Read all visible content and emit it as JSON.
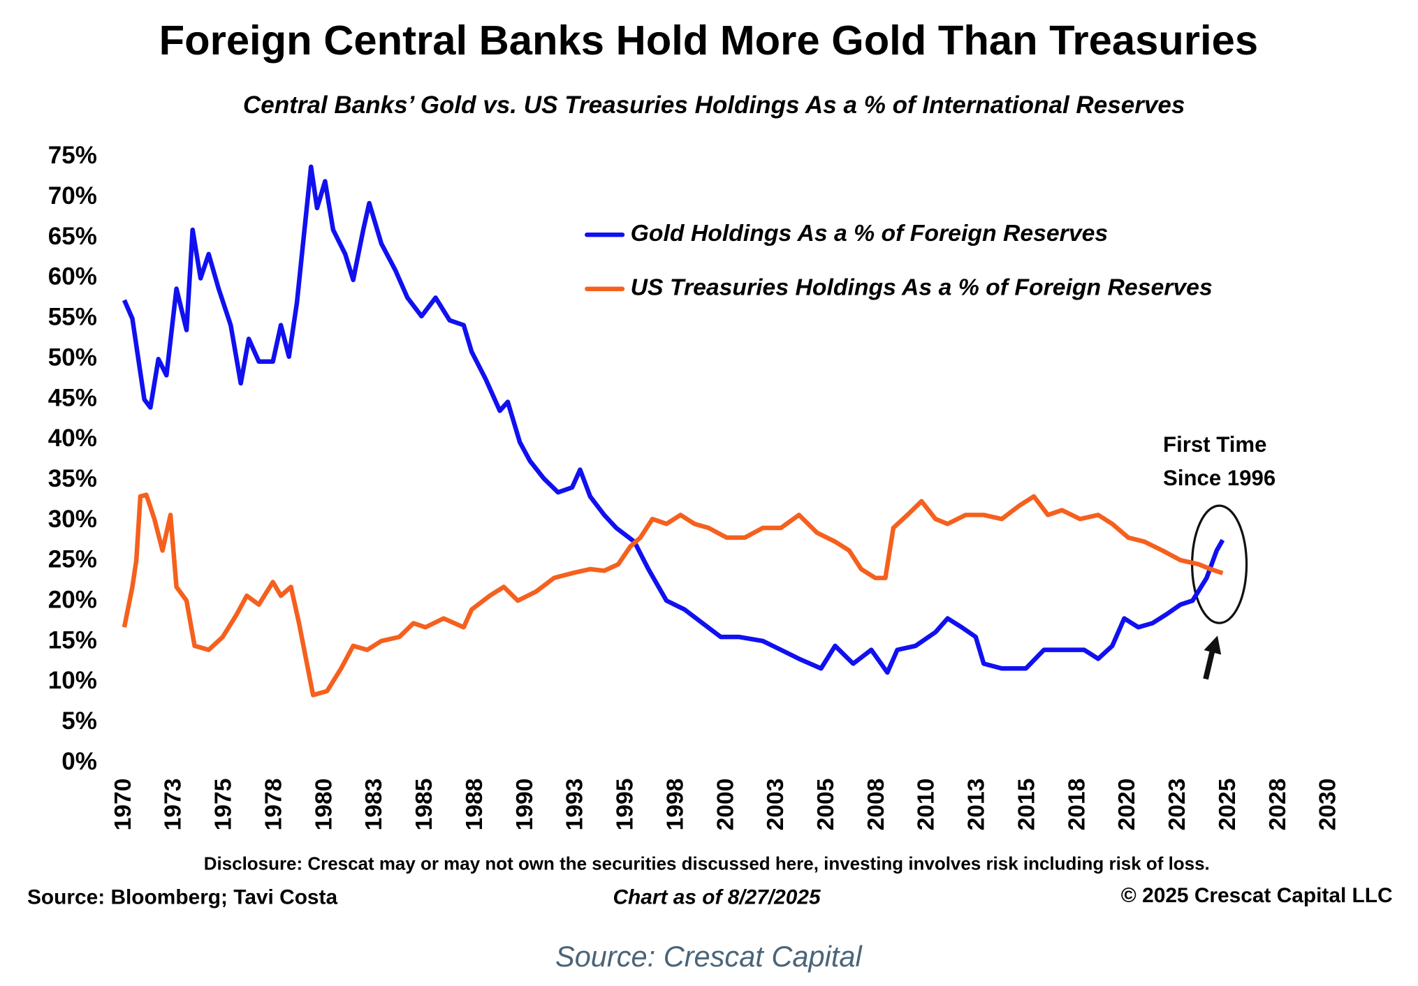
{
  "chart_data": {
    "type": "line",
    "title": "Foreign Central Banks Hold More Gold Than Treasuries",
    "subtitle": "Central Banks’ Gold vs. US Treasuries Holdings As a % of International Reserves",
    "annotation": [
      "First Time",
      "Since 1996"
    ],
    "disclosure": "Disclosure: Crescat may or may not own the securities discussed here, investing involves risk including risk of loss.",
    "source": "Source: Bloomberg; Tavi Costa",
    "chart_date": "Chart as of 8/27/2025",
    "copyright": "© 2025 Crescat Capital LLC",
    "caption": "Source: Crescat Capital",
    "xlim": [
      1970,
      2030
    ],
    "xticks": [
      1970,
      {
        "value": 1972.5,
        "label": "1973"
      },
      1975,
      {
        "value": 1977.5,
        "label": "1978"
      },
      1980,
      {
        "value": 1982.5,
        "label": "1983"
      },
      1985,
      {
        "value": 1987.5,
        "label": "1988"
      },
      1990,
      {
        "value": 1992.5,
        "label": "1993"
      },
      1995,
      {
        "value": 1997.5,
        "label": "1998"
      },
      2000,
      {
        "value": 2002.5,
        "label": "2003"
      },
      2005,
      {
        "value": 2007.5,
        "label": "2008"
      },
      2010,
      {
        "value": 2012.5,
        "label": "2013"
      },
      2015,
      {
        "value": 2017.5,
        "label": "2018"
      },
      2020,
      {
        "value": 2022.5,
        "label": "2023"
      },
      2025,
      {
        "value": 2027.5,
        "label": "2028"
      },
      2030
    ],
    "ylim": [
      0,
      75
    ],
    "yticks": [
      {
        "value": 0,
        "label": "0%"
      },
      {
        "value": 5,
        "label": "5%"
      },
      {
        "value": 10,
        "label": "10%"
      },
      {
        "value": 15,
        "label": "15%"
      },
      {
        "value": 20,
        "label": "20%"
      },
      {
        "value": 25,
        "label": "25%"
      },
      {
        "value": 30,
        "label": "30%"
      },
      {
        "value": 35,
        "label": "35%"
      },
      {
        "value": 40,
        "label": "40%"
      },
      {
        "value": 45,
        "label": "45%"
      },
      {
        "value": 50,
        "label": "50%"
      },
      {
        "value": 55,
        "label": "55%"
      },
      {
        "value": 60,
        "label": "60%"
      },
      {
        "value": 65,
        "label": "65%"
      },
      {
        "value": 70,
        "label": "70%"
      },
      {
        "value": 75,
        "label": "75%"
      }
    ],
    "series": [
      {
        "name": "Gold Holdings As a % of Foreign Reserves",
        "color": "#1010f0",
        "x": [
          1970.0,
          1970.4,
          1970.7,
          1971.0,
          1971.3,
          1971.7,
          1972.1,
          1972.6,
          1973.1,
          1973.4,
          1973.8,
          1974.2,
          1974.7,
          1975.3,
          1975.8,
          1976.2,
          1976.7,
          1977.4,
          1977.8,
          1978.2,
          1978.6,
          1979.3,
          1979.6,
          1980.0,
          1980.4,
          1981.0,
          1981.4,
          1981.9,
          1982.2,
          1982.8,
          1983.5,
          1984.1,
          1984.8,
          1985.5,
          1986.2,
          1986.9,
          1987.3,
          1988.0,
          1988.7,
          1989.1,
          1989.7,
          1990.2,
          1990.9,
          1991.6,
          1992.3,
          1992.7,
          1993.2,
          1993.9,
          1994.5,
          1995.4,
          1996.1,
          1997.0,
          1997.9,
          1998.8,
          1999.7,
          2000.6,
          2001.8,
          2002.7,
          2003.6,
          2004.7,
          2005.4,
          2006.3,
          2007.2,
          2008.0,
          2008.5,
          2009.4,
          2010.4,
          2011.0,
          2011.7,
          2012.4,
          2012.8,
          2013.7,
          2014.9,
          2015.8,
          2016.7,
          2017.8,
          2018.5,
          2019.2,
          2019.8,
          2020.5,
          2021.2,
          2021.9,
          2022.6,
          2023.2,
          2023.9,
          2024.4,
          2024.7
        ],
        "values": [
          57.3,
          55,
          50,
          45,
          44,
          50,
          48,
          58.7,
          53.6,
          66,
          60,
          63,
          58.7,
          54.2,
          47,
          52.5,
          49.7,
          49.7,
          54.2,
          50.3,
          57,
          73.8,
          68.7,
          72,
          66,
          63,
          59.8,
          66,
          69.3,
          64.3,
          61,
          57.6,
          55.3,
          57.6,
          54.8,
          54.2,
          50.9,
          47.5,
          43.6,
          44.7,
          39.7,
          37.4,
          35.2,
          33.5,
          34.1,
          36.3,
          33,
          30.7,
          29.1,
          27.4,
          24,
          20.1,
          19,
          17.3,
          15.6,
          15.6,
          15.1,
          14,
          12.9,
          11.7,
          14.5,
          12.3,
          14,
          11.2,
          14,
          14.5,
          16.2,
          17.9,
          16.8,
          15.6,
          12.3,
          11.7,
          11.7,
          14,
          14,
          14,
          12.9,
          14.5,
          17.9,
          16.8,
          17.3,
          18.4,
          19.6,
          20.1,
          22.9,
          26.3,
          27.6
        ]
      },
      {
        "name": "US Treasuries Holdings As a % of Foreign Reserves",
        "color": "#f5601e",
        "x": [
          1970.0,
          1970.4,
          1970.6,
          1970.8,
          1971.1,
          1971.5,
          1971.9,
          1972.3,
          1972.6,
          1973.1,
          1973.5,
          1974.2,
          1974.9,
          1975.6,
          1976.1,
          1976.7,
          1977.4,
          1977.8,
          1978.3,
          1978.7,
          1979.4,
          1980.1,
          1980.8,
          1981.4,
          1982.1,
          1982.8,
          1983.7,
          1984.4,
          1985.0,
          1985.9,
          1986.9,
          1987.3,
          1988.2,
          1988.9,
          1989.6,
          1990.5,
          1991.4,
          1992.3,
          1993.2,
          1993.9,
          1994.6,
          1995.2,
          1995.7,
          1996.3,
          1997.0,
          1997.7,
          1998.4,
          1999.1,
          2000.0,
          2000.9,
          2001.8,
          2002.7,
          2003.6,
          2004.5,
          2005.4,
          2006.1,
          2006.7,
          2007.4,
          2007.9,
          2008.3,
          2009.0,
          2009.7,
          2010.4,
          2011.0,
          2011.9,
          2012.8,
          2013.7,
          2014.6,
          2015.3,
          2016.0,
          2016.7,
          2017.6,
          2018.5,
          2019.2,
          2020.0,
          2020.8,
          2021.7,
          2022.6,
          2023.5,
          2024.1,
          2024.7
        ],
        "values": [
          16.8,
          21.8,
          25.1,
          33,
          33.2,
          30.2,
          26.3,
          30.7,
          21.8,
          20.1,
          14.5,
          14,
          15.6,
          18.4,
          20.7,
          19.6,
          22.4,
          20.7,
          21.8,
          17.3,
          8.4,
          8.9,
          11.7,
          14.5,
          14,
          15.1,
          15.6,
          17.3,
          16.8,
          17.9,
          16.8,
          19,
          20.7,
          21.8,
          20.1,
          21.2,
          22.9,
          23.5,
          24,
          23.8,
          24.6,
          26.8,
          27.9,
          30.2,
          29.6,
          30.7,
          29.6,
          29.1,
          27.9,
          27.9,
          29.1,
          29.1,
          30.7,
          28.5,
          27.4,
          26.3,
          24,
          22.9,
          22.9,
          29.1,
          30.7,
          32.4,
          30.2,
          29.6,
          30.7,
          30.7,
          30.2,
          31.9,
          33,
          30.7,
          31.3,
          30.2,
          30.7,
          29.6,
          27.9,
          27.4,
          26.3,
          25.1,
          24.6,
          24,
          23.5
        ]
      }
    ]
  }
}
